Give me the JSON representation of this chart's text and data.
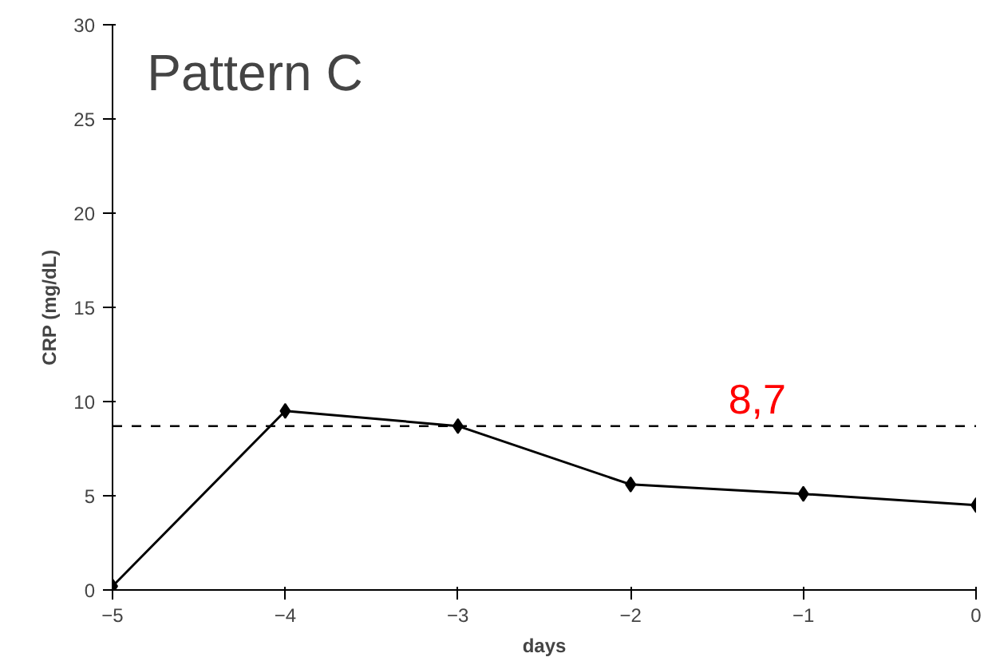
{
  "chart_data": {
    "type": "line",
    "xlabel": "days",
    "ylabel": "CRP (mg/dL)",
    "x": [
      -5,
      -4,
      -3,
      -2,
      -1,
      0
    ],
    "series": [
      {
        "color": "#000000",
        "values": [
          0.2,
          9.5,
          8.7,
          5.6,
          5.1,
          4.5
        ]
      }
    ],
    "xlim": [
      -5,
      0
    ],
    "xticks": [
      -5,
      -4,
      -3,
      -2,
      -1,
      0
    ],
    "ylim": [
      0,
      30
    ],
    "yticks": [
      0,
      5,
      10,
      15,
      20,
      25,
      30
    ],
    "marker": "diamond",
    "line_style": "solid",
    "grid": false,
    "ref_lines": [
      {
        "axis": "y",
        "value": 8.7,
        "label": "8,7",
        "color": "#000000",
        "line_style": "dashed"
      }
    ],
    "annotations": [
      "Pattern C"
    ]
  }
}
